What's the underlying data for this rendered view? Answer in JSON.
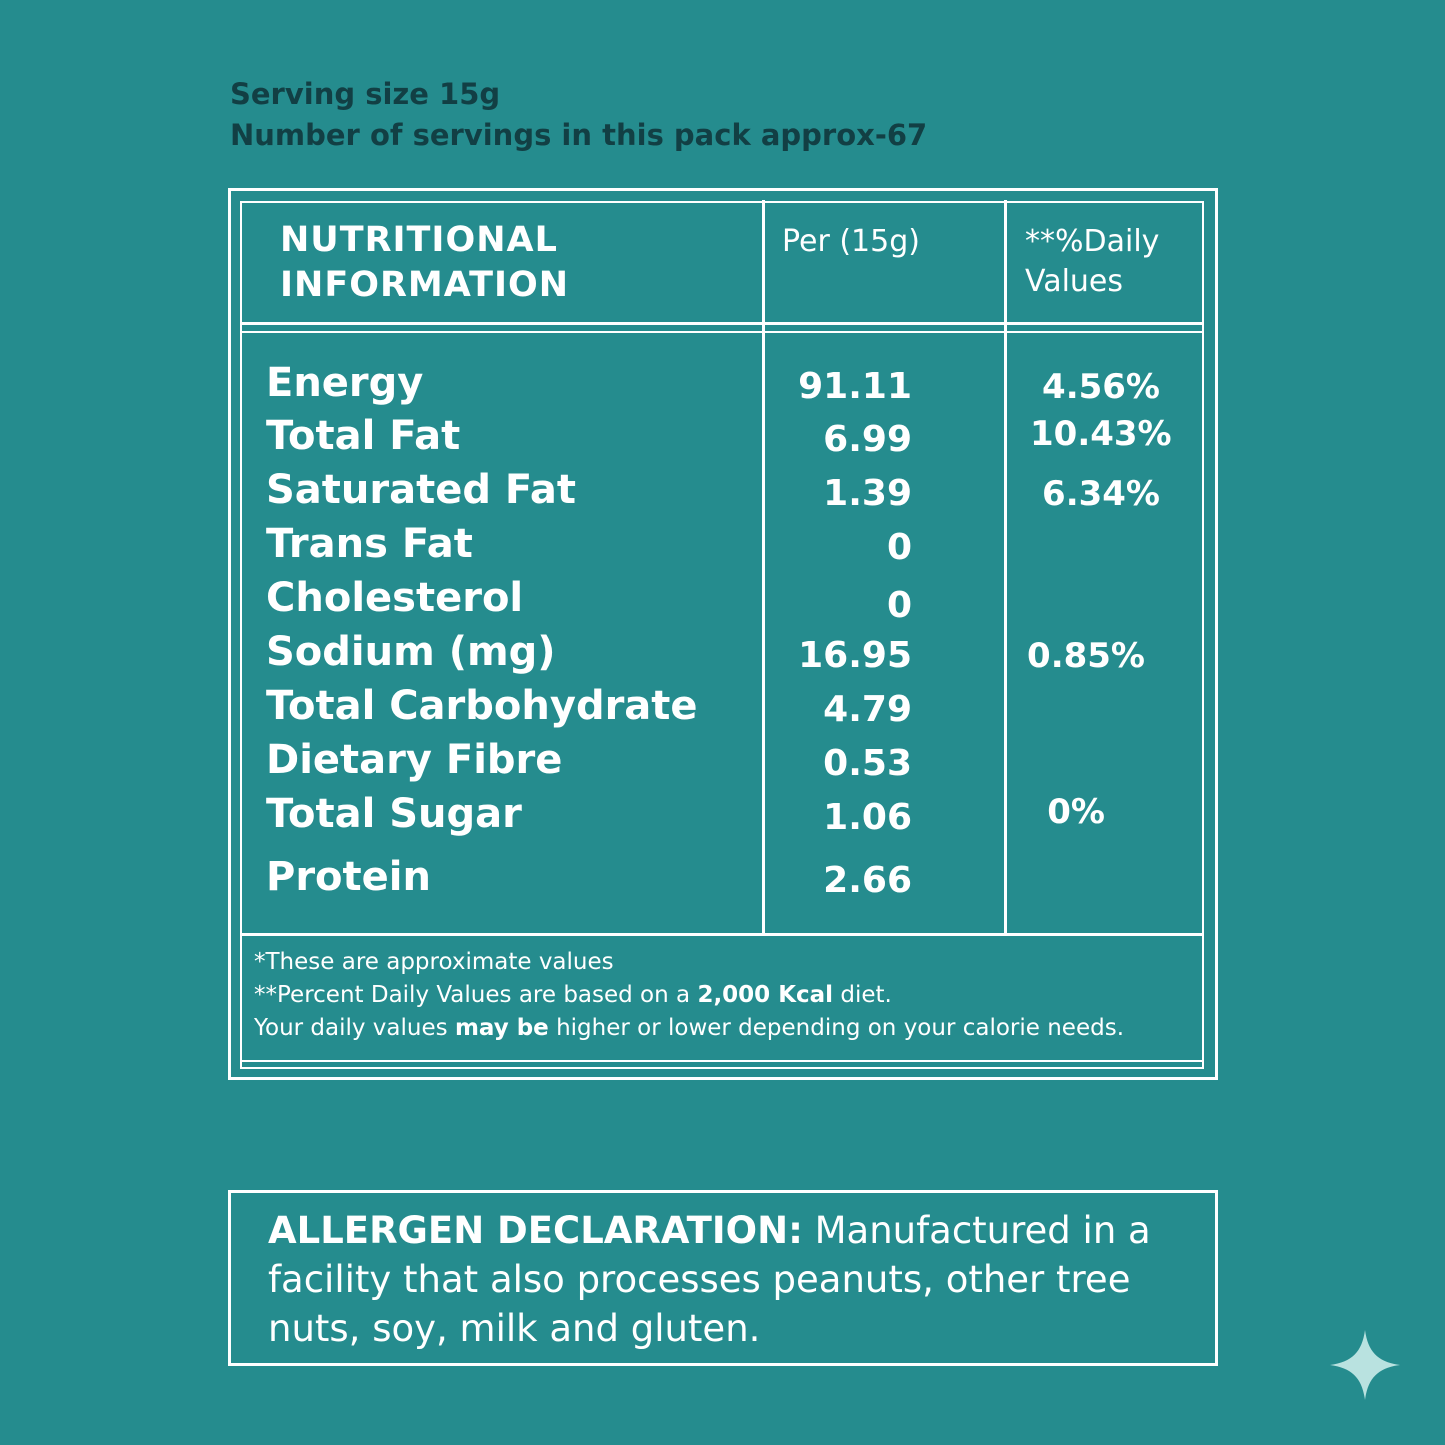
{
  "serving": {
    "size": "Serving size 15g",
    "servings": "Number of servings in this pack approx-67"
  },
  "table": {
    "header": {
      "title_line1": "NUTRITIONAL",
      "title_line2": "INFORMATION",
      "per": "Per (15g)",
      "dv_line1": "**%Daily",
      "dv_line2": "Values"
    },
    "rows": [
      {
        "label": "Energy",
        "value": "91.11",
        "dv": "4.56%"
      },
      {
        "label": "Total Fat",
        "value": "6.99",
        "dv": "10.43%"
      },
      {
        "label": "Saturated Fat",
        "value": "1.39",
        "dv": "6.34%"
      },
      {
        "label": "Trans Fat",
        "value": "0",
        "dv": ""
      },
      {
        "label": "Cholesterol",
        "value": "0",
        "dv": ""
      },
      {
        "label": "Sodium (mg)",
        "value": "16.95",
        "dv": "0.85%"
      },
      {
        "label": "Total Carbohydrate",
        "value": "4.79",
        "dv": ""
      },
      {
        "label": "Dietary Fibre",
        "value": "0.53",
        "dv": ""
      },
      {
        "label": "Total Sugar",
        "value": "1.06",
        "dv": "0%"
      },
      {
        "label": "Protein",
        "value": "2.66",
        "dv": ""
      }
    ],
    "notes": {
      "line1": "*These are approximate values",
      "line2_a": "**Percent Daily Values are based on a ",
      "line2_b": "2,000 Kcal",
      "line2_c": " diet.",
      "line3_a": "Your daily values ",
      "line3_b": "may be",
      "line3_c": " higher or lower depending on your calorie needs."
    }
  },
  "allergen": {
    "label": "ALLERGEN DECLARATION:",
    "text": " Manufactured in a facility that also processes peanuts, other tree nuts, soy, milk and gluten."
  },
  "colors": {
    "background": "#258c8e",
    "serving_text": "#123f44",
    "foreground": "#ffffff",
    "sparkle": "#b9e2e0"
  },
  "icons": {
    "corner": "sparkle-icon"
  }
}
